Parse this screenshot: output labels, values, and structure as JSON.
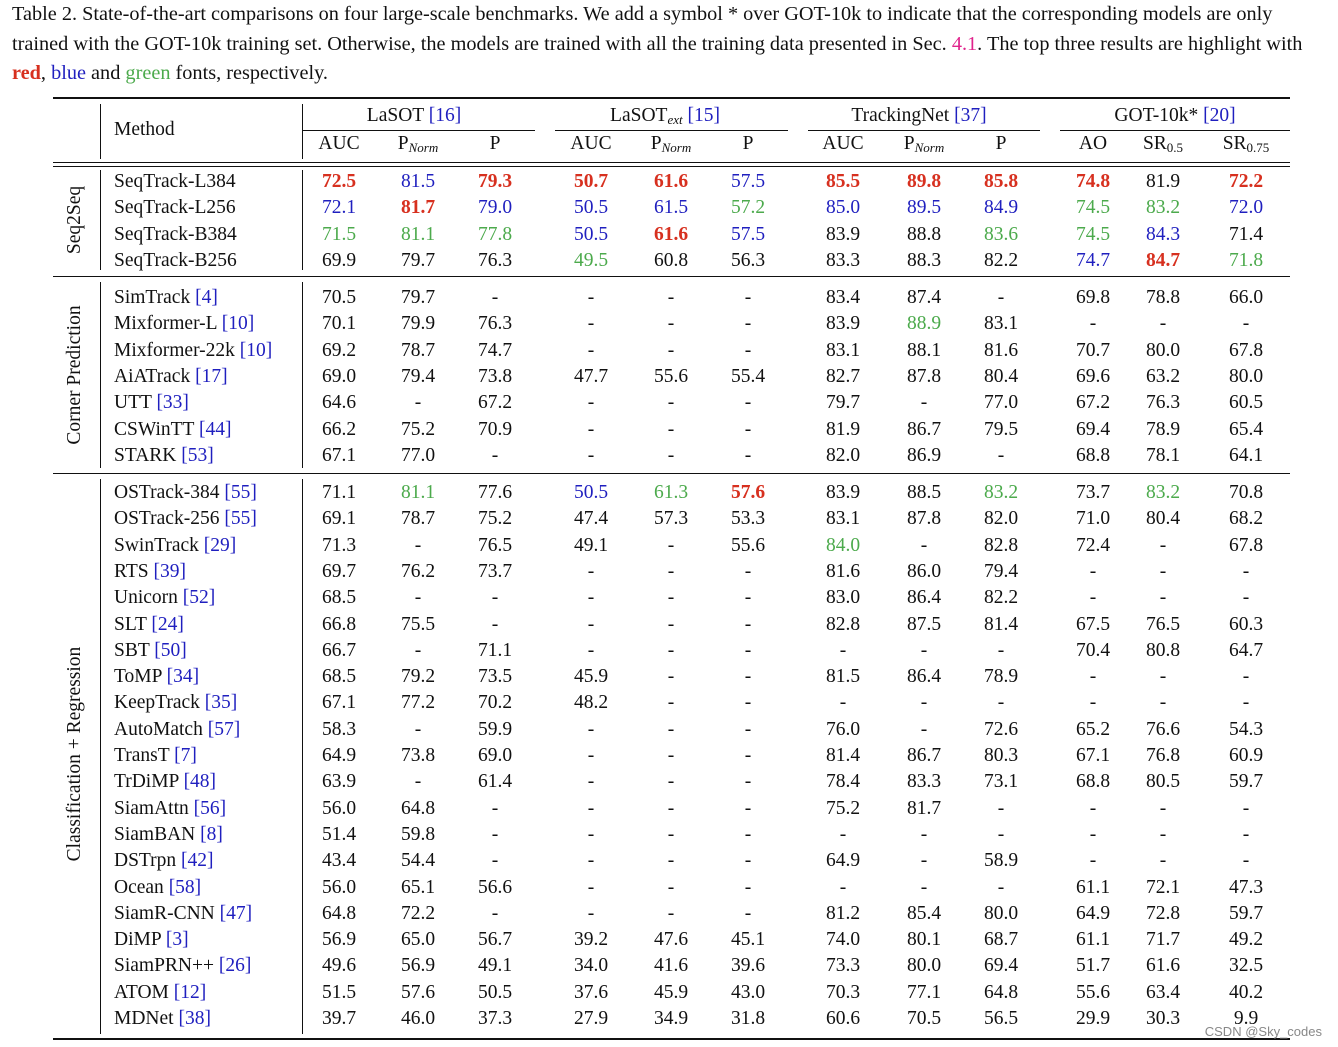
{
  "caption": {
    "part1": "Table 2. State-of-the-art comparisons on four large-scale benchmarks. We add a symbol * over GOT-10k to indicate that the corresponding models are only trained with the GOT-10k training set. Otherwise, the models are trained with all the training data presented in Sec. ",
    "sec_ref": "4.1",
    "part2": ". The top three results are highlight with ",
    "red": "red",
    "sep1": ", ",
    "blue": "blue",
    "sep2": " and ",
    "green": "green",
    "part3": " fonts, respectively."
  },
  "header": {
    "method": "Method",
    "benchmarks": [
      {
        "name": "LaSOT",
        "sub": "",
        "cite": "[16]"
      },
      {
        "name": "LaSOT",
        "sub": "ext",
        "cite": "[15]"
      },
      {
        "name": "TrackingNet",
        "sub": "",
        "cite": "[37]"
      },
      {
        "name": "GOT-10k*",
        "sub": "",
        "cite": "[20]"
      }
    ],
    "metrics": [
      {
        "m": "AUC",
        "s": ""
      },
      {
        "m": "P",
        "s": "Norm"
      },
      {
        "m": "P",
        "s": ""
      },
      {
        "m": "AUC",
        "s": ""
      },
      {
        "m": "P",
        "s": "Norm"
      },
      {
        "m": "P",
        "s": ""
      },
      {
        "m": "AUC",
        "s": ""
      },
      {
        "m": "P",
        "s": "Norm"
      },
      {
        "m": "P",
        "s": ""
      },
      {
        "m": "AO",
        "s": ""
      },
      {
        "m": "SR",
        "s": "0.5"
      },
      {
        "m": "SR",
        "s": "0.75"
      }
    ]
  },
  "groups": [
    {
      "label": "Seq2Seq",
      "rows": [
        {
          "name": "SeqTrack-L384",
          "cite": "",
          "v": [
            "72.5",
            "81.5",
            "79.3",
            "50.7",
            "61.6",
            "57.5",
            "85.5",
            "89.8",
            "85.8",
            "74.8",
            "81.9",
            "72.2"
          ],
          "c": [
            "r",
            "b",
            "r",
            "r",
            "r",
            "b",
            "r",
            "r",
            "r",
            "r",
            "",
            "r"
          ]
        },
        {
          "name": "SeqTrack-L256",
          "cite": "",
          "v": [
            "72.1",
            "81.7",
            "79.0",
            "50.5",
            "61.5",
            "57.2",
            "85.0",
            "89.5",
            "84.9",
            "74.5",
            "83.2",
            "72.0"
          ],
          "c": [
            "b",
            "r",
            "b",
            "b",
            "b",
            "g",
            "b",
            "b",
            "b",
            "g",
            "g",
            "b"
          ]
        },
        {
          "name": "SeqTrack-B384",
          "cite": "",
          "v": [
            "71.5",
            "81.1",
            "77.8",
            "50.5",
            "61.6",
            "57.5",
            "83.9",
            "88.8",
            "83.6",
            "74.5",
            "84.3",
            "71.4"
          ],
          "c": [
            "g",
            "g",
            "g",
            "b",
            "r",
            "b",
            "",
            "",
            "g",
            "g",
            "b",
            ""
          ]
        },
        {
          "name": "SeqTrack-B256",
          "cite": "",
          "v": [
            "69.9",
            "79.7",
            "76.3",
            "49.5",
            "60.8",
            "56.3",
            "83.3",
            "88.3",
            "82.2",
            "74.7",
            "84.7",
            "71.8"
          ],
          "c": [
            "",
            "",
            "",
            "g",
            "",
            "",
            "",
            "",
            "",
            "b",
            "r",
            "g"
          ]
        }
      ]
    },
    {
      "label": "Corner Prediction",
      "rows": [
        {
          "name": "SimTrack ",
          "cite": "[4]",
          "v": [
            "70.5",
            "79.7",
            "-",
            "-",
            "-",
            "-",
            "83.4",
            "87.4",
            "-",
            "69.8",
            "78.8",
            "66.0"
          ],
          "c": []
        },
        {
          "name": "Mixformer-L ",
          "cite": "[10]",
          "v": [
            "70.1",
            "79.9",
            "76.3",
            "-",
            "-",
            "-",
            "83.9",
            "88.9",
            "83.1",
            "-",
            "-",
            "-"
          ],
          "c": [
            "",
            "",
            "",
            "",
            "",
            "",
            "",
            "g",
            "",
            "",
            "",
            ""
          ]
        },
        {
          "name": "Mixformer-22k ",
          "cite": "[10]",
          "v": [
            "69.2",
            "78.7",
            "74.7",
            "-",
            "-",
            "-",
            "83.1",
            "88.1",
            "81.6",
            "70.7",
            "80.0",
            "67.8"
          ],
          "c": []
        },
        {
          "name": "AiATrack ",
          "cite": "[17]",
          "v": [
            "69.0",
            "79.4",
            "73.8",
            "47.7",
            "55.6",
            "55.4",
            "82.7",
            "87.8",
            "80.4",
            "69.6",
            "63.2",
            "80.0"
          ],
          "c": []
        },
        {
          "name": "UTT ",
          "cite": "[33]",
          "v": [
            "64.6",
            "-",
            "67.2",
            "-",
            "-",
            "-",
            "79.7",
            "-",
            "77.0",
            "67.2",
            "76.3",
            "60.5"
          ],
          "c": []
        },
        {
          "name": "CSWinTT ",
          "cite": "[44]",
          "v": [
            "66.2",
            "75.2",
            "70.9",
            "-",
            "-",
            "-",
            "81.9",
            "86.7",
            "79.5",
            "69.4",
            "78.9",
            "65.4"
          ],
          "c": []
        },
        {
          "name": "STARK ",
          "cite": "[53]",
          "v": [
            "67.1",
            "77.0",
            "-",
            "-",
            "-",
            "-",
            "82.0",
            "86.9",
            "-",
            "68.8",
            "78.1",
            "64.1"
          ],
          "c": []
        }
      ]
    },
    {
      "label": "Classification + Regression",
      "rows": [
        {
          "name": "OSTrack-384 ",
          "cite": "[55]",
          "v": [
            "71.1",
            "81.1",
            "77.6",
            "50.5",
            "61.3",
            "57.6",
            "83.9",
            "88.5",
            "83.2",
            "73.7",
            "83.2",
            "70.8"
          ],
          "c": [
            "",
            "g",
            "",
            "b",
            "g",
            "r",
            "",
            "",
            "g",
            "",
            "g",
            ""
          ]
        },
        {
          "name": "OSTrack-256 ",
          "cite": "[55]",
          "v": [
            "69.1",
            "78.7",
            "75.2",
            "47.4",
            "57.3",
            "53.3",
            "83.1",
            "87.8",
            "82.0",
            "71.0",
            "80.4",
            "68.2"
          ],
          "c": []
        },
        {
          "name": "SwinTrack ",
          "cite": "[29]",
          "v": [
            "71.3",
            "-",
            "76.5",
            "49.1",
            "-",
            "55.6",
            "84.0",
            "-",
            "82.8",
            "72.4",
            "-",
            "67.8"
          ],
          "c": [
            "",
            "",
            "",
            "",
            "",
            "",
            "g",
            "",
            "",
            "",
            "",
            ""
          ]
        },
        {
          "name": "RTS ",
          "cite": "[39]",
          "v": [
            "69.7",
            "76.2",
            "73.7",
            "-",
            "-",
            "-",
            "81.6",
            "86.0",
            "79.4",
            "-",
            "-",
            "-"
          ],
          "c": []
        },
        {
          "name": "Unicorn ",
          "cite": "[52]",
          "v": [
            "68.5",
            "-",
            "-",
            "-",
            "-",
            "-",
            "83.0",
            "86.4",
            "82.2",
            "-",
            "-",
            "-"
          ],
          "c": []
        },
        {
          "name": "SLT ",
          "cite": "[24]",
          "v": [
            "66.8",
            "75.5",
            "-",
            "-",
            "-",
            "-",
            "82.8",
            "87.5",
            "81.4",
            "67.5",
            "76.5",
            "60.3"
          ],
          "c": []
        },
        {
          "name": "SBT ",
          "cite": "[50]",
          "v": [
            "66.7",
            "-",
            "71.1",
            "-",
            "-",
            "-",
            "-",
            "-",
            "-",
            "70.4",
            "80.8",
            "64.7"
          ],
          "c": []
        },
        {
          "name": "ToMP ",
          "cite": "[34]",
          "v": [
            "68.5",
            "79.2",
            "73.5",
            "45.9",
            "-",
            "-",
            "81.5",
            "86.4",
            "78.9",
            "-",
            "-",
            "-"
          ],
          "c": []
        },
        {
          "name": "KeepTrack ",
          "cite": "[35]",
          "v": [
            "67.1",
            "77.2",
            "70.2",
            "48.2",
            "-",
            "-",
            "-",
            "-",
            "-",
            "-",
            "-",
            "-"
          ],
          "c": []
        },
        {
          "name": "AutoMatch ",
          "cite": "[57]",
          "v": [
            "58.3",
            "-",
            "59.9",
            "-",
            "-",
            "-",
            "76.0",
            "-",
            "72.6",
            "65.2",
            "76.6",
            "54.3"
          ],
          "c": []
        },
        {
          "name": "TransT ",
          "cite": "[7]",
          "v": [
            "64.9",
            "73.8",
            "69.0",
            "-",
            "-",
            "-",
            "81.4",
            "86.7",
            "80.3",
            "67.1",
            "76.8",
            "60.9"
          ],
          "c": []
        },
        {
          "name": "TrDiMP ",
          "cite": "[48]",
          "v": [
            "63.9",
            "-",
            "61.4",
            "-",
            "-",
            "-",
            "78.4",
            "83.3",
            "73.1",
            "68.8",
            "80.5",
            "59.7"
          ],
          "c": []
        },
        {
          "name": "SiamAttn ",
          "cite": "[56]",
          "v": [
            "56.0",
            "64.8",
            "-",
            "-",
            "-",
            "-",
            "75.2",
            "81.7",
            "-",
            "-",
            "-",
            "-"
          ],
          "c": []
        },
        {
          "name": "SiamBAN ",
          "cite": "[8]",
          "v": [
            "51.4",
            "59.8",
            "-",
            "-",
            "-",
            "-",
            "-",
            "-",
            "-",
            "-",
            "-",
            "-"
          ],
          "c": []
        },
        {
          "name": "DSTrpn ",
          "cite": "[42]",
          "v": [
            "43.4",
            "54.4",
            "-",
            "-",
            "-",
            "-",
            "64.9",
            "-",
            "58.9",
            "-",
            "-",
            "-"
          ],
          "c": []
        },
        {
          "name": "Ocean ",
          "cite": "[58]",
          "v": [
            "56.0",
            "65.1",
            "56.6",
            "-",
            "-",
            "-",
            "-",
            "-",
            "-",
            "61.1",
            "72.1",
            "47.3"
          ],
          "c": []
        },
        {
          "name": "SiamR-CNN ",
          "cite": "[47]",
          "v": [
            "64.8",
            "72.2",
            "-",
            "-",
            "-",
            "-",
            "81.2",
            "85.4",
            "80.0",
            "64.9",
            "72.8",
            "59.7"
          ],
          "c": []
        },
        {
          "name": "DiMP ",
          "cite": "[3]",
          "v": [
            "56.9",
            "65.0",
            "56.7",
            "39.2",
            "47.6",
            "45.1",
            "74.0",
            "80.1",
            "68.7",
            "61.1",
            "71.7",
            "49.2"
          ],
          "c": []
        },
        {
          "name": "SiamPRN++ ",
          "cite": "[26]",
          "v": [
            "49.6",
            "56.9",
            "49.1",
            "34.0",
            "41.6",
            "39.6",
            "73.3",
            "80.0",
            "69.4",
            "51.7",
            "61.6",
            "32.5"
          ],
          "c": []
        },
        {
          "name": "ATOM ",
          "cite": "[12]",
          "v": [
            "51.5",
            "57.6",
            "50.5",
            "37.6",
            "45.9",
            "43.0",
            "70.3",
            "77.1",
            "64.8",
            "55.6",
            "63.4",
            "40.2"
          ],
          "c": []
        },
        {
          "name": "MDNet ",
          "cite": "[38]",
          "v": [
            "39.7",
            "46.0",
            "37.3",
            "27.9",
            "34.9",
            "31.8",
            "60.6",
            "70.5",
            "56.5",
            "29.9",
            "30.3",
            "9.9"
          ],
          "c": []
        }
      ]
    }
  ],
  "watermark": "CSDN @Sky_codes"
}
